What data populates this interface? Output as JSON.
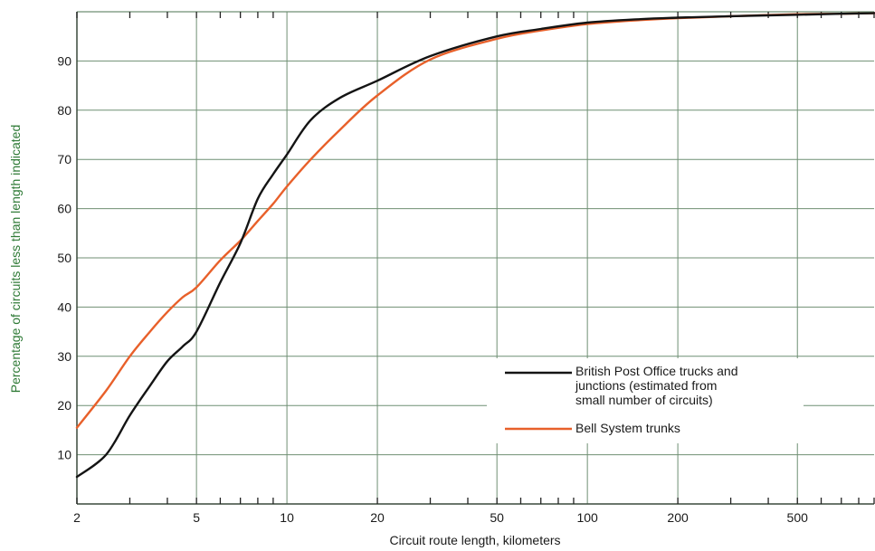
{
  "chart_data": {
    "type": "line",
    "xlabel": "Circuit route length, kilometers",
    "ylabel": "Percentage of circuits less than length indicated",
    "x_scale": "log",
    "xlim": [
      2,
      900
    ],
    "ylim": [
      0,
      100
    ],
    "x_ticks": [
      2,
      5,
      10,
      20,
      50,
      100,
      200,
      500
    ],
    "x_tick_labels": [
      "2",
      "5",
      "10",
      "20",
      "50",
      "100",
      "200",
      "500"
    ],
    "y_ticks": [
      10,
      20,
      30,
      40,
      50,
      60,
      70,
      80,
      90
    ],
    "y_tick_labels": [
      "10",
      "20",
      "30",
      "40",
      "50",
      "60",
      "70",
      "80",
      "90"
    ],
    "grid": true,
    "legend_position": "lower-right",
    "series": [
      {
        "name": "British Post Office trucks and junctions (estimated from small number of circuits)",
        "legend_lines": [
          "British Post Office trucks and",
          "junctions (estimated from",
          "small number of circuits)"
        ],
        "color": "#141414",
        "x": [
          2,
          2.5,
          3,
          3.5,
          4,
          4.5,
          5,
          6,
          7,
          8,
          9,
          10,
          12,
          15,
          20,
          30,
          50,
          70,
          100,
          150,
          200,
          300,
          500,
          700,
          900
        ],
        "y": [
          5.5,
          10,
          18,
          24,
          29,
          32,
          35,
          45,
          53,
          62,
          67,
          71,
          78,
          82.5,
          86,
          91,
          95,
          96.5,
          97.8,
          98.5,
          98.8,
          99.1,
          99.4,
          99.6,
          99.7
        ]
      },
      {
        "name": "Bell System trunks",
        "legend_lines": [
          "Bell System trunks"
        ],
        "color": "#e8602a",
        "x": [
          2,
          2.5,
          3,
          3.5,
          4,
          4.5,
          5,
          6,
          7,
          8,
          9,
          10,
          12,
          15,
          20,
          30,
          50,
          70,
          100,
          150,
          200,
          300,
          500,
          700,
          900
        ],
        "y": [
          15.5,
          23,
          30,
          35,
          39,
          42,
          44,
          49.5,
          53.5,
          57.5,
          61,
          64.5,
          70,
          76,
          83,
          90.3,
          94.5,
          96.2,
          97.5,
          98.3,
          98.7,
          99.1,
          99.5,
          99.6,
          99.7
        ]
      }
    ]
  }
}
